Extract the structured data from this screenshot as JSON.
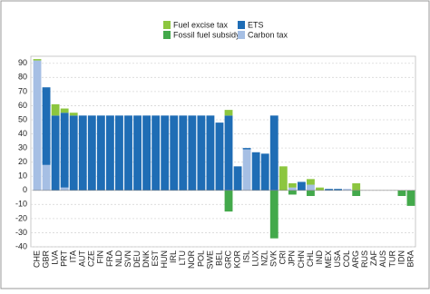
{
  "chart_data": {
    "type": "stacked-bar",
    "categories": [
      "CHE",
      "GBR",
      "LVA",
      "PRT",
      "ITA",
      "AUT",
      "CZE",
      "FIN",
      "FRA",
      "NLD",
      "SVN",
      "DEU",
      "DNK",
      "EST",
      "HUN",
      "IRL",
      "LTU",
      "NOR",
      "POL",
      "SWE",
      "BEL",
      "GRC",
      "KOR",
      "ISL",
      "LUX",
      "NZL",
      "SVK",
      "CRI",
      "JPN",
      "CHN",
      "CHL",
      "IND",
      "MEX",
      "USA",
      "COL",
      "ARG",
      "RUS",
      "ZAF",
      "AUS",
      "TUR",
      "IDN",
      "BRA"
    ],
    "series": [
      {
        "name": "Fuel excise tax",
        "color": "#8cc63f",
        "values": [
          1,
          0,
          8,
          3,
          2,
          0,
          0,
          0,
          0,
          0,
          0,
          0,
          0,
          0,
          0,
          0,
          0,
          0,
          0,
          0,
          0,
          4,
          0,
          0,
          0,
          0,
          0,
          17,
          3,
          0,
          4,
          2,
          0,
          0,
          0,
          5,
          0,
          0,
          0,
          0,
          0,
          0
        ]
      },
      {
        "name": "ETS",
        "color": "#1f6db5",
        "values": [
          0,
          55,
          53,
          53,
          53,
          53,
          53,
          53,
          53,
          53,
          53,
          53,
          53,
          53,
          53,
          53,
          53,
          53,
          53,
          53,
          48,
          53,
          17,
          1,
          27,
          26,
          53,
          0,
          0,
          6,
          0,
          0,
          1,
          1,
          0,
          0,
          0,
          0,
          0,
          0,
          0,
          0
        ]
      },
      {
        "name": "Fossil fuel subsidy",
        "color": "#43a94b",
        "values": [
          0,
          0,
          0,
          0,
          0,
          0,
          0,
          0,
          0,
          0,
          0,
          0,
          0,
          0,
          0,
          0,
          0,
          0,
          0,
          0,
          0,
          -15,
          0,
          0,
          0,
          0,
          -34,
          0,
          -3,
          0,
          -4,
          0,
          0,
          0,
          0,
          -4,
          0,
          0,
          0,
          0,
          -4,
          -11
        ]
      },
      {
        "name": "Carbon tax",
        "color": "#a6bfe4",
        "values": [
          92,
          18,
          0,
          2,
          0,
          0,
          0,
          0,
          0,
          0,
          0,
          0,
          0,
          0,
          0,
          0,
          0,
          0,
          0,
          0,
          0,
          0,
          0,
          29,
          0,
          0,
          0,
          0,
          2,
          0,
          4,
          0,
          0,
          0,
          1,
          0,
          0,
          0,
          0,
          0,
          0,
          0
        ]
      }
    ],
    "ylim": [
      -40,
      95
    ],
    "yticks": [
      -40,
      -30,
      -20,
      -10,
      0,
      10,
      20,
      30,
      40,
      50,
      60,
      70,
      80,
      90
    ],
    "grid": true
  }
}
